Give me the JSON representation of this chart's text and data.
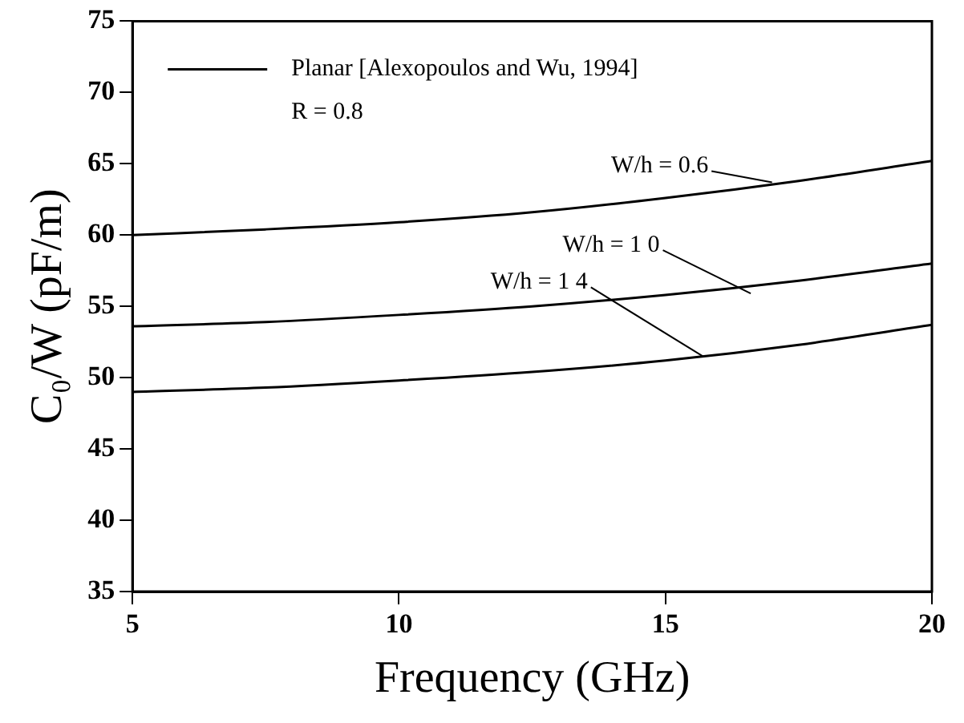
{
  "chart_data": {
    "type": "line",
    "xlabel": "Frequency (GHz)",
    "ylabel": "C₀/W (pF/m)",
    "x": [
      5,
      7.5,
      10,
      12.5,
      15,
      17.5,
      20
    ],
    "series": [
      {
        "name": "Planar [Alexopoulos and Wu, 1994]",
        "color": "#000000",
        "values": [
          60,
          60.4,
          60.9,
          61.6,
          62.6,
          63.8,
          65.2
        ]
      },
      {
        "color": "#000000",
        "values": [
          53.6,
          53.9,
          54.4,
          55.0,
          55.8,
          56.8,
          58.0
        ]
      },
      {
        "color": "#000000",
        "values": [
          49,
          49.3,
          49.8,
          50.4,
          51.2,
          52.3,
          53.7
        ]
      }
    ],
    "annotations": [
      "R = 0.8",
      {
        "text": "W/h = 0.6",
        "x": 17,
        "y": 63.7
      },
      {
        "text": "W/h = 1 0",
        "x": 16.6,
        "y": 55.9
      },
      {
        "text": "W/h = 1 4",
        "x": 15.7,
        "y": 51.5
      }
    ],
    "xlim": [
      5,
      20
    ],
    "xticks": [
      5,
      10,
      15,
      20
    ],
    "ylim": [
      35,
      75
    ],
    "yticks": [
      35,
      40,
      45,
      50,
      55,
      60,
      65,
      70,
      75
    ],
    "grid": false,
    "legend": "top left",
    "marker": "none",
    "line_style": "solid"
  }
}
